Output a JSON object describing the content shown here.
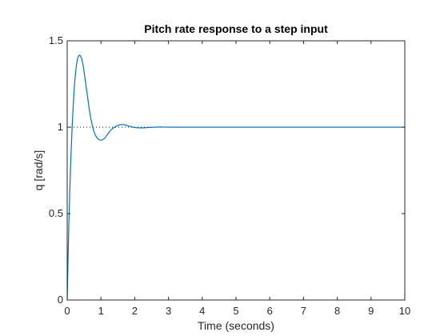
{
  "chart_data": {
    "type": "line",
    "title": "Pitch rate response to a step input",
    "xlabel": "Time (seconds)",
    "ylabel": "q [rad/s]",
    "xlim": [
      0,
      10
    ],
    "ylim": [
      0,
      1.5
    ],
    "xticks": [
      0,
      1,
      2,
      3,
      4,
      5,
      6,
      7,
      8,
      9,
      10
    ],
    "yticks": [
      0,
      0.5,
      1,
      1.5
    ],
    "ytick_labels": [
      "0",
      "0.5",
      "1",
      "1.5"
    ],
    "grid": false,
    "reference_line": {
      "y": 1,
      "style": "dotted",
      "color": "#000000"
    },
    "series": [
      {
        "color": "#0072BD",
        "x": [
          0,
          0.05,
          0.1,
          0.15,
          0.2,
          0.25,
          0.3,
          0.35,
          0.4,
          0.45,
          0.5,
          0.55,
          0.6,
          0.65,
          0.7,
          0.8,
          0.9,
          1.0,
          1.1,
          1.2,
          1.3,
          1.4,
          1.5,
          1.6,
          1.7,
          1.8,
          1.9,
          2.0,
          2.2,
          2.4,
          2.6,
          2.8,
          3.0,
          4.0,
          5.0,
          6.0,
          7.0,
          8.0,
          9.0,
          10.0
        ],
        "y": [
          0,
          0.45,
          0.78,
          1.02,
          1.2,
          1.32,
          1.39,
          1.415,
          1.41,
          1.38,
          1.32,
          1.25,
          1.18,
          1.11,
          1.05,
          0.97,
          0.935,
          0.925,
          0.935,
          0.96,
          0.985,
          1.0,
          1.01,
          1.015,
          1.014,
          1.008,
          1.003,
          0.998,
          0.996,
          0.998,
          1.0,
          1.001,
          1.0,
          1.0,
          1.0,
          1.0,
          1.0,
          1.0,
          1.0,
          1.0
        ]
      }
    ]
  }
}
